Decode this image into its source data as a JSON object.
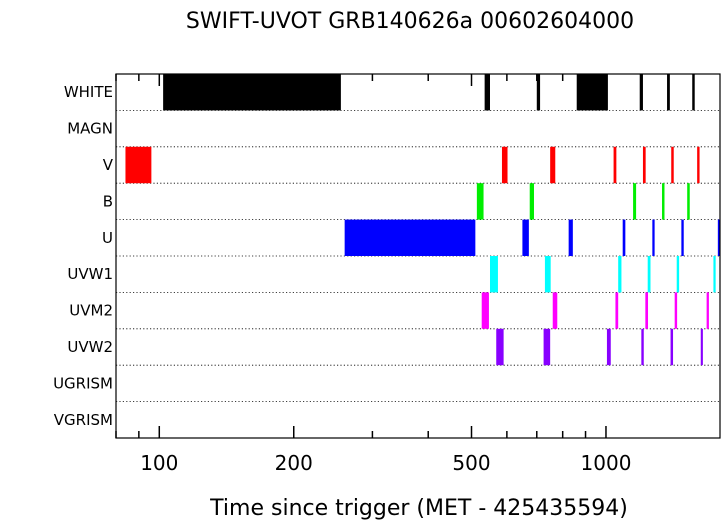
{
  "chart_data": {
    "type": "timeline",
    "title": "SWIFT-UVOT GRB140626a 00602604000",
    "xlabel": "Time since trigger (MET - 425435594)",
    "x_scale": "log",
    "xlim": [
      80,
      1800
    ],
    "x_tick_labels": [
      "100",
      "200",
      "500",
      "1000"
    ],
    "x_tick_values": [
      100,
      200,
      500,
      1000
    ],
    "grid": "dotted row separators",
    "rows": [
      {
        "name": "WHITE",
        "color": "#000000",
        "intervals": [
          [
            102,
            255
          ],
          [
            535,
            550
          ],
          [
            700,
            712
          ],
          [
            860,
            1010
          ],
          [
            1190,
            1210
          ],
          [
            1370,
            1390
          ],
          [
            1560,
            1580
          ]
        ]
      },
      {
        "name": "MAGN",
        "color": "#000000",
        "intervals": []
      },
      {
        "name": "V",
        "color": "#ff0000",
        "intervals": [
          [
            84,
            96
          ],
          [
            585,
            602
          ],
          [
            750,
            770
          ],
          [
            1040,
            1055
          ],
          [
            1210,
            1227
          ],
          [
            1400,
            1418
          ],
          [
            1600,
            1620
          ]
        ]
      },
      {
        "name": "B",
        "color": "#00ee00",
        "intervals": [
          [
            514,
            532
          ],
          [
            675,
            690
          ],
          [
            1150,
            1168
          ],
          [
            1335,
            1352
          ],
          [
            1520,
            1540
          ]
        ]
      },
      {
        "name": "U",
        "color": "#0000ff",
        "intervals": [
          [
            260,
            510
          ],
          [
            650,
            672
          ],
          [
            825,
            843
          ],
          [
            1090,
            1105
          ],
          [
            1270,
            1285
          ],
          [
            1475,
            1493
          ],
          [
            1780,
            1800
          ]
        ]
      },
      {
        "name": "UVW1",
        "color": "#00ffff",
        "intervals": [
          [
            550,
            573
          ],
          [
            730,
            752
          ],
          [
            1065,
            1083
          ],
          [
            1240,
            1258
          ],
          [
            1440,
            1458
          ],
          [
            1740,
            1760
          ]
        ]
      },
      {
        "name": "UVM2",
        "color": "#ff00ff",
        "intervals": [
          [
            527,
            547
          ],
          [
            760,
            778
          ],
          [
            1050,
            1065
          ],
          [
            1225,
            1242
          ],
          [
            1425,
            1443
          ],
          [
            1680,
            1700
          ]
        ]
      },
      {
        "name": "UVW2",
        "color": "#8800ff",
        "intervals": [
          [
            568,
            590
          ],
          [
            725,
            750
          ],
          [
            1005,
            1025
          ],
          [
            1200,
            1215
          ],
          [
            1395,
            1413
          ],
          [
            1630,
            1648
          ]
        ]
      },
      {
        "name": "UGRISM",
        "color": "#000000",
        "intervals": []
      },
      {
        "name": "VGRISM",
        "color": "#000000",
        "intervals": []
      }
    ]
  }
}
